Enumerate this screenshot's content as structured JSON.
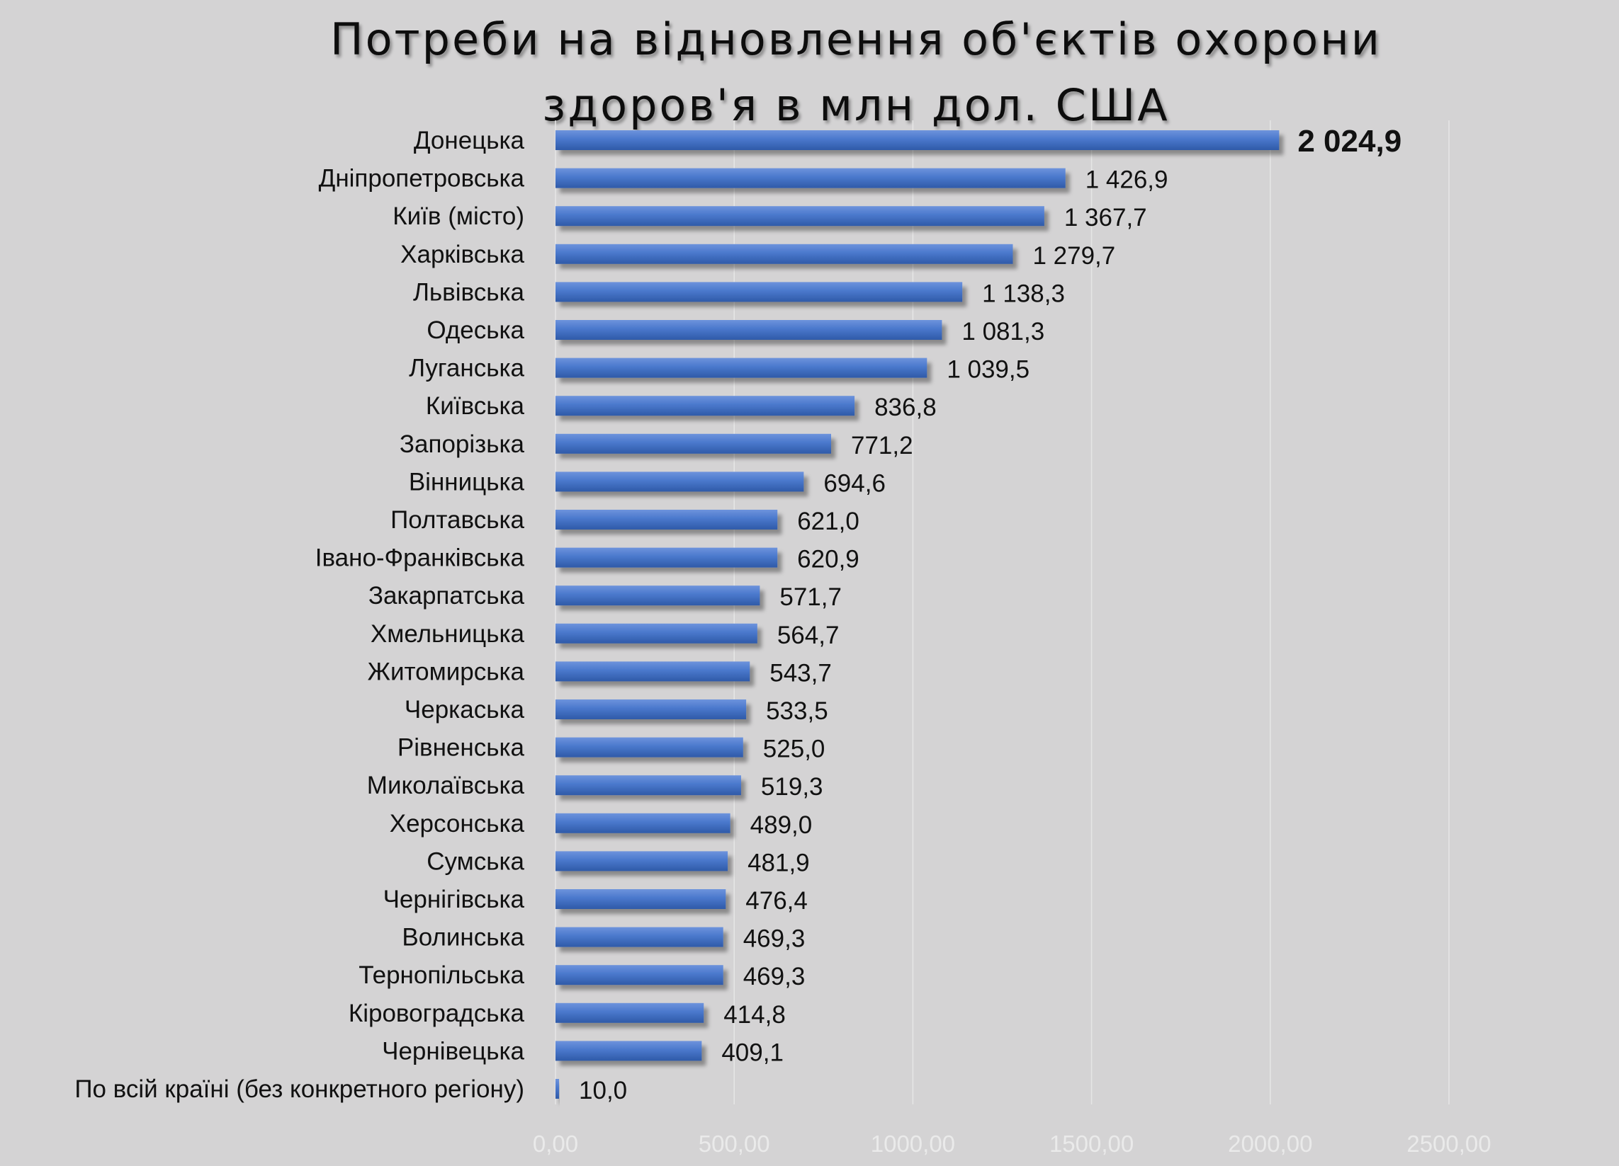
{
  "chart_data": {
    "type": "bar",
    "orientation": "horizontal",
    "title": "Потреби на відновлення об'єктів охорони здоров'я в млн дол. США",
    "title_lines": [
      "Потреби на відновлення об'єктів охорони",
      "здоров'я в млн дол. США"
    ],
    "categories": [
      "Донецька",
      "Дніпропетровська",
      "Київ (місто)",
      "Харківська",
      "Львівська",
      "Одеська",
      "Луганська",
      "Київська",
      "Запорізька",
      "Вінницька",
      "Полтавська",
      "Івано-Франківська",
      "Закарпатська",
      "Хмельницька",
      "Житомирська",
      "Черкаська",
      "Рівненська",
      "Миколаївська",
      "Херсонська",
      "Сумська",
      "Чернігівська",
      "Волинська",
      "Тернопільська",
      "Кіровоградська",
      "Чернівецька",
      "По всій країні (без конкретного регіону)"
    ],
    "values": [
      2024.9,
      1426.9,
      1367.7,
      1279.7,
      1138.3,
      1081.3,
      1039.5,
      836.8,
      771.2,
      694.6,
      621.0,
      620.9,
      571.7,
      564.7,
      543.7,
      533.5,
      525.0,
      519.3,
      489.0,
      481.9,
      476.4,
      469.3,
      469.3,
      414.8,
      409.1,
      10.0
    ],
    "value_labels": [
      "2 024,9",
      "1 426,9",
      "1 367,7",
      "1 279,7",
      "1 138,3",
      "1 081,3",
      "1 039,5",
      "836,8",
      "771,2",
      "694,6",
      "621,0",
      "620,9",
      "571,7",
      "564,7",
      "543,7",
      "533,5",
      "525,0",
      "519,3",
      "489,0",
      "481,9",
      "476,4",
      "469,3",
      "469,3",
      "414,8",
      "409,1",
      "10,0"
    ],
    "xticks": [
      0,
      500,
      1000,
      1500,
      2000,
      2500
    ],
    "xtick_labels": [
      "0,00",
      "500,00",
      "1000,00",
      "1500,00",
      "2000,00",
      "2500,00"
    ],
    "xlim": [
      0,
      2500
    ],
    "grid": true,
    "legend": "none",
    "colors": {
      "bar": "#4472c4",
      "background": "#d4d3d4",
      "gridline": "#e6e6e6",
      "tick_label": "#eaeaea"
    }
  }
}
